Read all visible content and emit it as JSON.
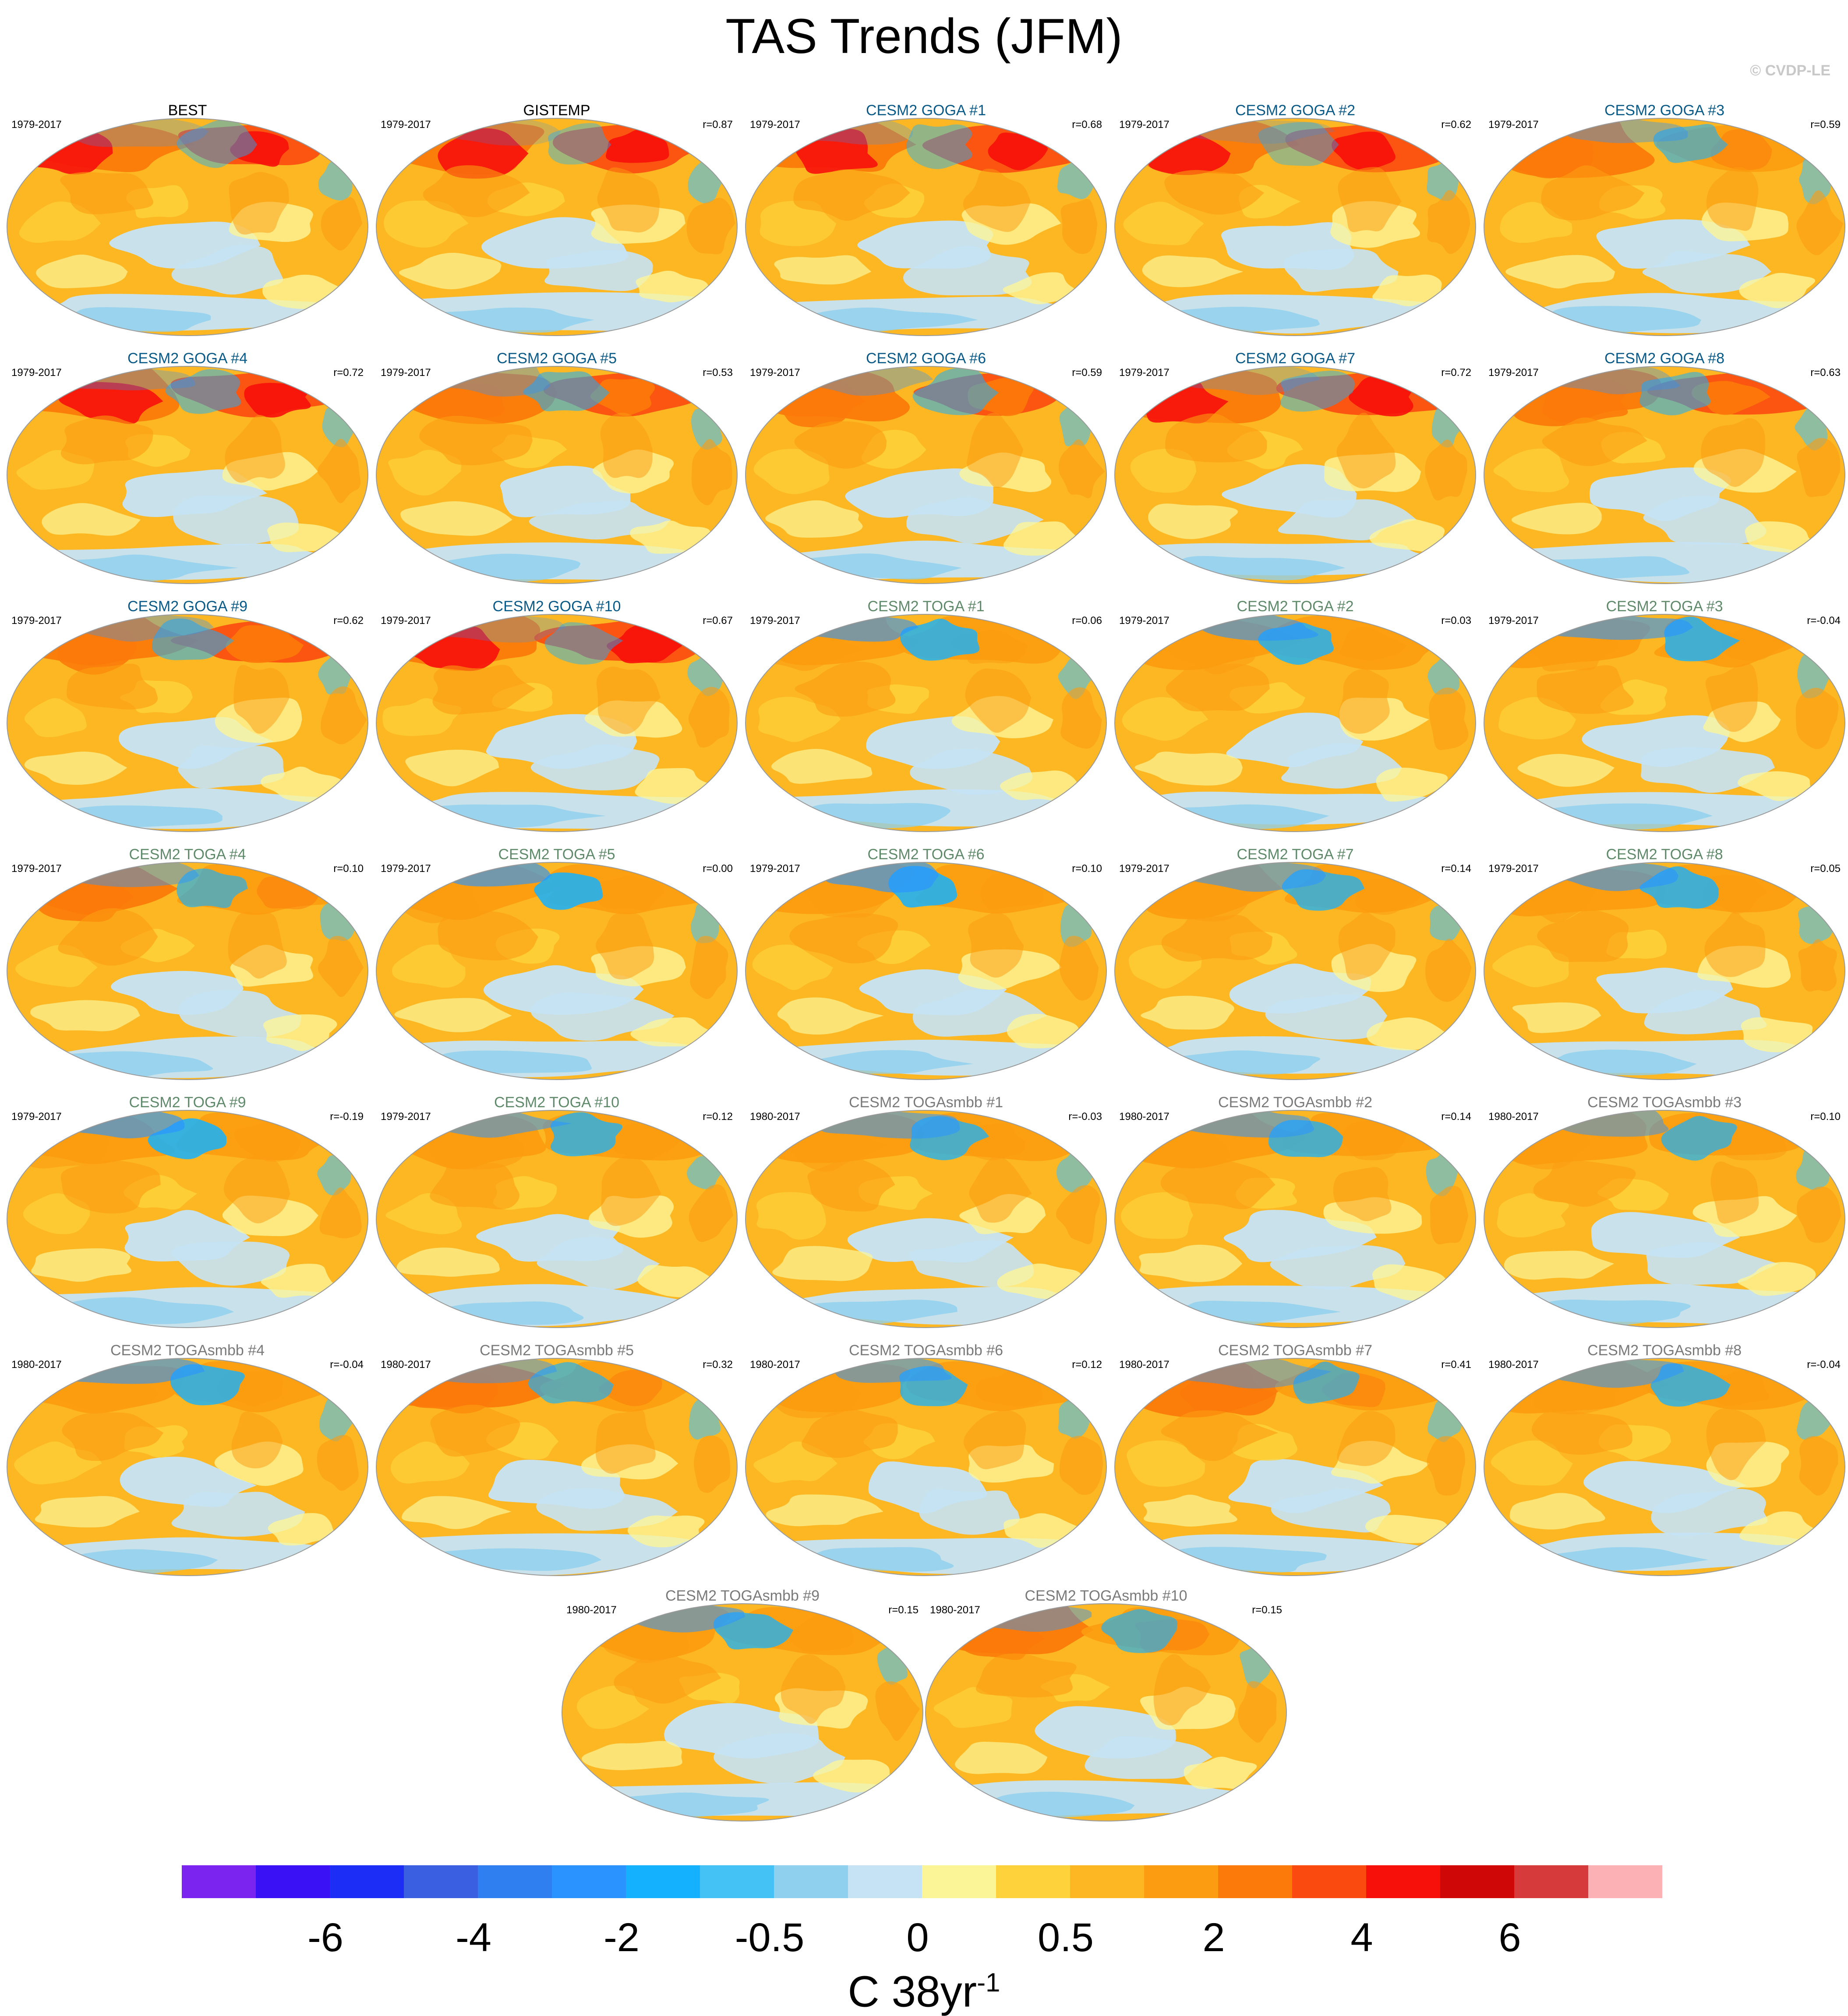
{
  "title": "TAS Trends (JFM)",
  "credit": "© CVDP-LE",
  "colors": {
    "goga_title": "#0a5a88",
    "toga_title": "#5f8a6a",
    "smbb_title": "#7a7a7a",
    "obs_title": "#000000"
  },
  "chart_data": {
    "type": "map-grid",
    "variable": "TAS Trends (JFM)",
    "units_text": "C 38yr",
    "units_sup": "-1",
    "panels": [
      {
        "title": "BEST",
        "years": "1979-2017",
        "r": "",
        "group": "obs",
        "warmth": 0.85
      },
      {
        "title": "GISTEMP",
        "years": "1979-2017",
        "r": "r=0.87",
        "group": "obs",
        "warmth": 0.9
      },
      {
        "title": "CESM2 GOGA #1",
        "years": "1979-2017",
        "r": "r=0.68",
        "group": "goga",
        "warmth": 0.85
      },
      {
        "title": "CESM2 GOGA #2",
        "years": "1979-2017",
        "r": "r=0.62",
        "group": "goga",
        "warmth": 0.9
      },
      {
        "title": "CESM2 GOGA #3",
        "years": "1979-2017",
        "r": "r=0.59",
        "group": "goga",
        "warmth": 0.7
      },
      {
        "title": "CESM2 GOGA #4",
        "years": "1979-2017",
        "r": "r=0.72",
        "group": "goga",
        "warmth": 0.8
      },
      {
        "title": "CESM2 GOGA #5",
        "years": "1979-2017",
        "r": "r=0.53",
        "group": "goga",
        "warmth": 0.75
      },
      {
        "title": "CESM2 GOGA #6",
        "years": "1979-2017",
        "r": "r=0.59",
        "group": "goga",
        "warmth": 0.75
      },
      {
        "title": "CESM2 GOGA #7",
        "years": "1979-2017",
        "r": "r=0.72",
        "group": "goga",
        "warmth": 0.85
      },
      {
        "title": "CESM2 GOGA #8",
        "years": "1979-2017",
        "r": "r=0.63",
        "group": "goga",
        "warmth": 0.75
      },
      {
        "title": "CESM2 GOGA #9",
        "years": "1979-2017",
        "r": "r=0.62",
        "group": "goga",
        "warmth": 0.75
      },
      {
        "title": "CESM2 GOGA #10",
        "years": "1979-2017",
        "r": "r=0.67",
        "group": "goga",
        "warmth": 0.85
      },
      {
        "title": "CESM2 TOGA #1",
        "years": "1979-2017",
        "r": "r=0.06",
        "group": "toga",
        "warmth": 0.5
      },
      {
        "title": "CESM2 TOGA #2",
        "years": "1979-2017",
        "r": "r=0.03",
        "group": "toga",
        "warmth": 0.5
      },
      {
        "title": "CESM2 TOGA #3",
        "years": "1979-2017",
        "r": "r=-0.04",
        "group": "toga",
        "warmth": 0.5
      },
      {
        "title": "CESM2 TOGA #4",
        "years": "1979-2017",
        "r": "r=0.10",
        "group": "toga",
        "warmth": 0.65
      },
      {
        "title": "CESM2 TOGA #5",
        "years": "1979-2017",
        "r": "r=0.00",
        "group": "toga",
        "warmth": 0.45
      },
      {
        "title": "CESM2 TOGA #6",
        "years": "1979-2017",
        "r": "r=0.10",
        "group": "toga",
        "warmth": 0.45
      },
      {
        "title": "CESM2 TOGA #7",
        "years": "1979-2017",
        "r": "r=0.14",
        "group": "toga",
        "warmth": 0.55
      },
      {
        "title": "CESM2 TOGA #8",
        "years": "1979-2017",
        "r": "r=0.05",
        "group": "toga",
        "warmth": 0.5
      },
      {
        "title": "CESM2 TOGA #9",
        "years": "1979-2017",
        "r": "r=-0.19",
        "group": "toga",
        "warmth": 0.45
      },
      {
        "title": "CESM2 TOGA #10",
        "years": "1979-2017",
        "r": "r=0.12",
        "group": "toga",
        "warmth": 0.55
      },
      {
        "title": "CESM2 TOGAsmbb #1",
        "years": "1980-2017",
        "r": "r=-0.03",
        "group": "smbb",
        "warmth": 0.55
      },
      {
        "title": "CESM2 TOGAsmbb #2",
        "years": "1980-2017",
        "r": "r=0.14",
        "group": "smbb",
        "warmth": 0.55
      },
      {
        "title": "CESM2 TOGAsmbb #3",
        "years": "1980-2017",
        "r": "r=0.10",
        "group": "smbb",
        "warmth": 0.6
      },
      {
        "title": "CESM2 TOGAsmbb #4",
        "years": "1980-2017",
        "r": "r=-0.04",
        "group": "smbb",
        "warmth": 0.5
      },
      {
        "title": "CESM2 TOGAsmbb #5",
        "years": "1980-2017",
        "r": "r=0.32",
        "group": "smbb",
        "warmth": 0.65
      },
      {
        "title": "CESM2 TOGAsmbb #6",
        "years": "1980-2017",
        "r": "r=0.12",
        "group": "smbb",
        "warmth": 0.55
      },
      {
        "title": "CESM2 TOGAsmbb #7",
        "years": "1980-2017",
        "r": "r=0.41",
        "group": "smbb",
        "warmth": 0.65
      },
      {
        "title": "CESM2 TOGAsmbb #8",
        "years": "1980-2017",
        "r": "r=-0.04",
        "group": "smbb",
        "warmth": 0.55
      },
      {
        "title": "CESM2 TOGAsmbb #9",
        "years": "1980-2017",
        "r": "r=0.15",
        "group": "smbb",
        "warmth": 0.55
      },
      {
        "title": "CESM2 TOGAsmbb #10",
        "years": "1980-2017",
        "r": "r=0.15",
        "group": "smbb",
        "warmth": 0.65
      }
    ],
    "colorbar": {
      "colors": [
        "#7b24f0",
        "#3a10f5",
        "#1c2ef5",
        "#3a5fe0",
        "#2f7ff0",
        "#2a93ff",
        "#14b1ff",
        "#44c2f5",
        "#8fd0ee",
        "#c5e3f5",
        "#fcf598",
        "#fed23a",
        "#fcb722",
        "#fc9c10",
        "#fc7a0a",
        "#fb4a10",
        "#f70f0a",
        "#cf0707",
        "#d63a3a",
        "#fcb2b4"
      ],
      "tick_labels": [
        "-6",
        "-4",
        "-2",
        "-0.5",
        "0",
        "0.5",
        "2",
        "4",
        "6"
      ],
      "tick_boundaries": [
        2,
        4,
        6,
        8,
        10,
        12,
        14,
        16,
        18
      ]
    }
  }
}
